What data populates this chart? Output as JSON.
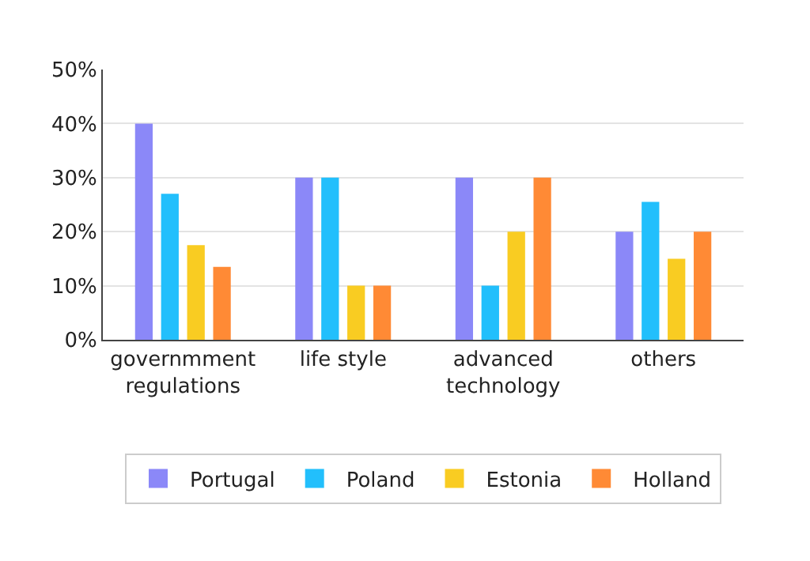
{
  "chart_data": {
    "type": "bar",
    "categories": [
      "governmment\nregulations",
      "life style",
      "advanced\ntechnology",
      "others"
    ],
    "series": [
      {
        "name": "Portugal",
        "color": "#8b88f8",
        "values": [
          40,
          30,
          30,
          20
        ]
      },
      {
        "name": "Poland",
        "color": "#22bffc",
        "values": [
          27,
          30,
          10,
          25.5
        ]
      },
      {
        "name": "Estonia",
        "color": "#f9cc22",
        "values": [
          17.5,
          10,
          20,
          15
        ]
      },
      {
        "name": "Holland",
        "color": "#ff8a35",
        "values": [
          13.5,
          10,
          30,
          20
        ]
      }
    ],
    "ylim": [
      0,
      50
    ],
    "yticks": [
      {
        "value": 0,
        "label": "0%"
      },
      {
        "value": 10,
        "label": "10%"
      },
      {
        "value": 20,
        "label": "20%"
      },
      {
        "value": 30,
        "label": "30%"
      },
      {
        "value": 40,
        "label": "40%"
      },
      {
        "value": 50,
        "label": "50%"
      }
    ],
    "grid": "y",
    "legend": "bottom"
  }
}
